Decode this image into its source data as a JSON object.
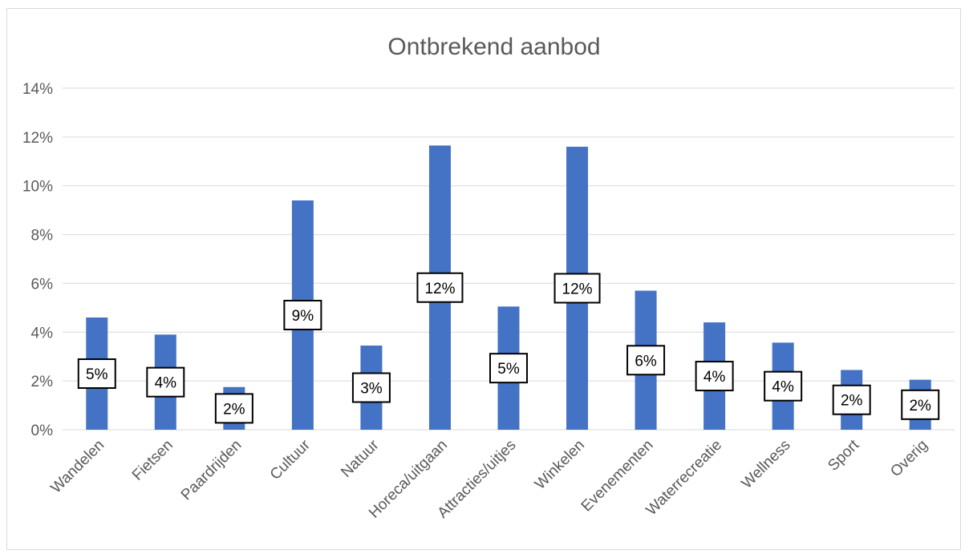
{
  "chart_data": {
    "type": "bar",
    "title": "Ontbrekend aanbod",
    "xlabel": "",
    "ylabel": "",
    "categories": [
      "Wandelen",
      "Fietsen",
      "Paardrijden",
      "Cultuur",
      "Natuur",
      "Horeca/uitgaan",
      "Attracties/uitjes",
      "Winkelen",
      "Evenementen",
      "Waterrecreatie",
      "Wellness",
      "Sport",
      "Overig"
    ],
    "values": [
      4.6,
      3.9,
      1.75,
      9.4,
      3.45,
      11.65,
      5.05,
      11.6,
      5.7,
      4.4,
      3.57,
      2.45,
      2.05
    ],
    "data_labels": [
      "5%",
      "4%",
      "2%",
      "9%",
      "3%",
      "12%",
      "5%",
      "12%",
      "6%",
      "4%",
      "4%",
      "2%",
      "2%"
    ],
    "y_ticks": [
      "0%",
      "2%",
      "4%",
      "6%",
      "8%",
      "10%",
      "12%",
      "14%"
    ],
    "ylim": [
      0,
      14
    ],
    "grid": true,
    "legend": "none",
    "bar_color": "#4472c4",
    "grid_color": "#d9d9d9"
  }
}
